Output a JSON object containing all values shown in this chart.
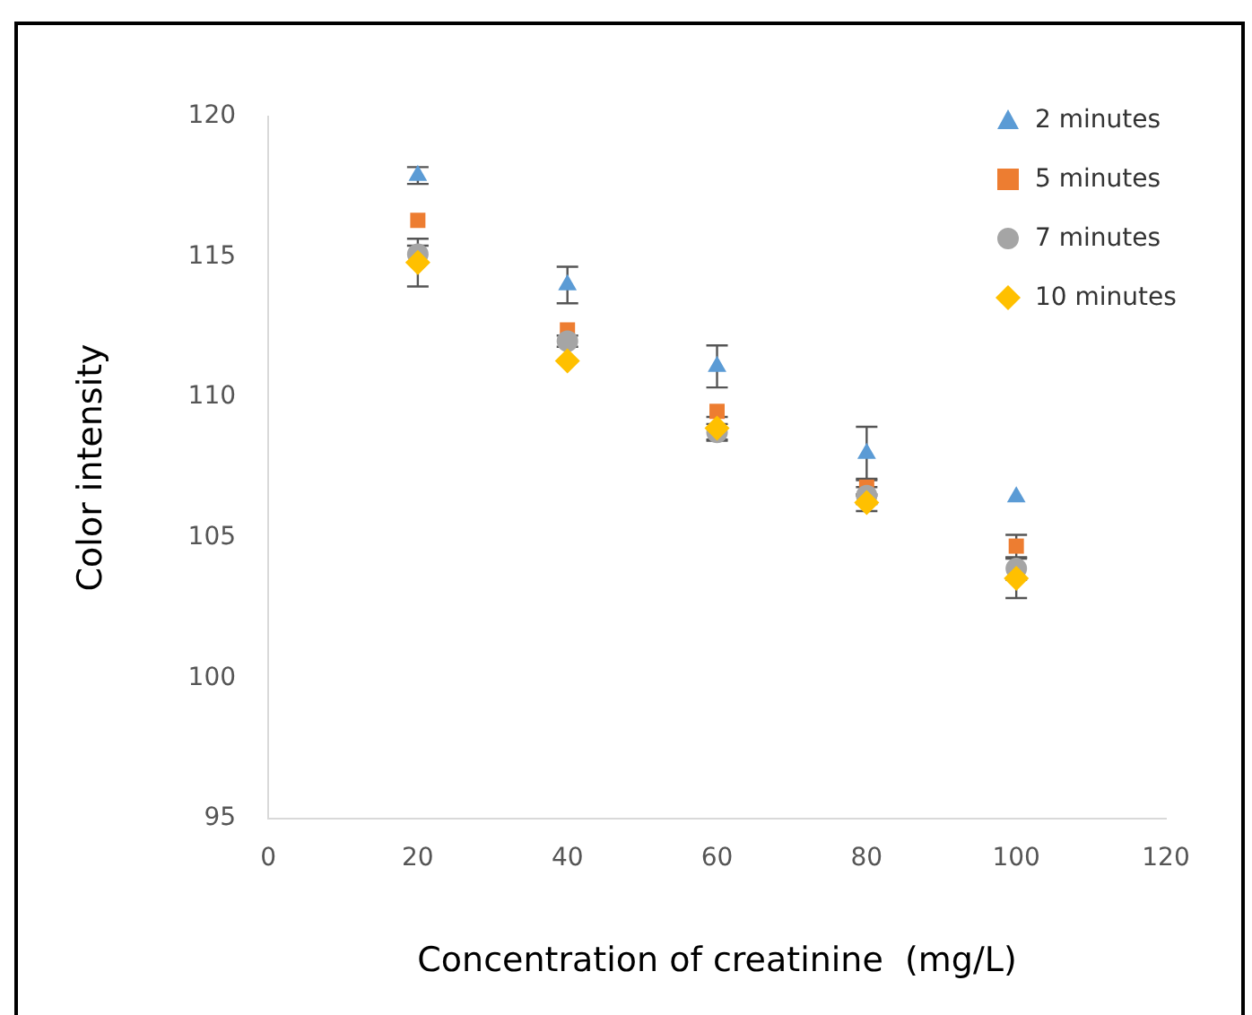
{
  "chart_data": {
    "type": "scatter",
    "xlabel": "Concentration of creatinine  (mg/L)",
    "ylabel": "Color intensity",
    "xlim": [
      0,
      120
    ],
    "xticks": [
      0,
      20,
      40,
      60,
      80,
      100,
      120
    ],
    "ylim": [
      95,
      120
    ],
    "yticks": [
      95,
      100,
      105,
      110,
      115,
      120
    ],
    "grid": false,
    "legend": "top right",
    "series": [
      {
        "name": "2 minutes",
        "color": "#5b9bd5",
        "marker": "triangle",
        "x": [
          20,
          40,
          60,
          80,
          100
        ],
        "values": [
          117.9,
          114.0,
          111.1,
          108.0,
          106.45
        ],
        "errors": [
          0.3,
          0.65,
          0.75,
          0.95,
          null
        ]
      },
      {
        "name": "5 minutes",
        "color": "#ed7d31",
        "marker": "square",
        "x": [
          20,
          40,
          60,
          80,
          100
        ],
        "values": [
          116.3,
          112.4,
          109.5,
          106.8,
          104.7
        ],
        "errors": [
          null,
          null,
          null,
          0.3,
          0.4
        ]
      },
      {
        "name": "7 minutes",
        "color": "#a5a5a5",
        "marker": "circle",
        "x": [
          20,
          40,
          60,
          80,
          100
        ],
        "values": [
          115.1,
          112.0,
          108.75,
          106.5,
          103.9
        ],
        "errors": [
          0.3,
          0.2,
          0.3,
          0.3,
          0.4
        ]
      },
      {
        "name": "10 minutes",
        "color": "#ffc000",
        "marker": "diamond",
        "x": [
          20,
          40,
          60,
          80,
          100
        ],
        "values": [
          114.8,
          111.3,
          108.9,
          106.25,
          103.55
        ],
        "errors": [
          0.85,
          null,
          0.4,
          0.3,
          0.7
        ]
      }
    ]
  }
}
